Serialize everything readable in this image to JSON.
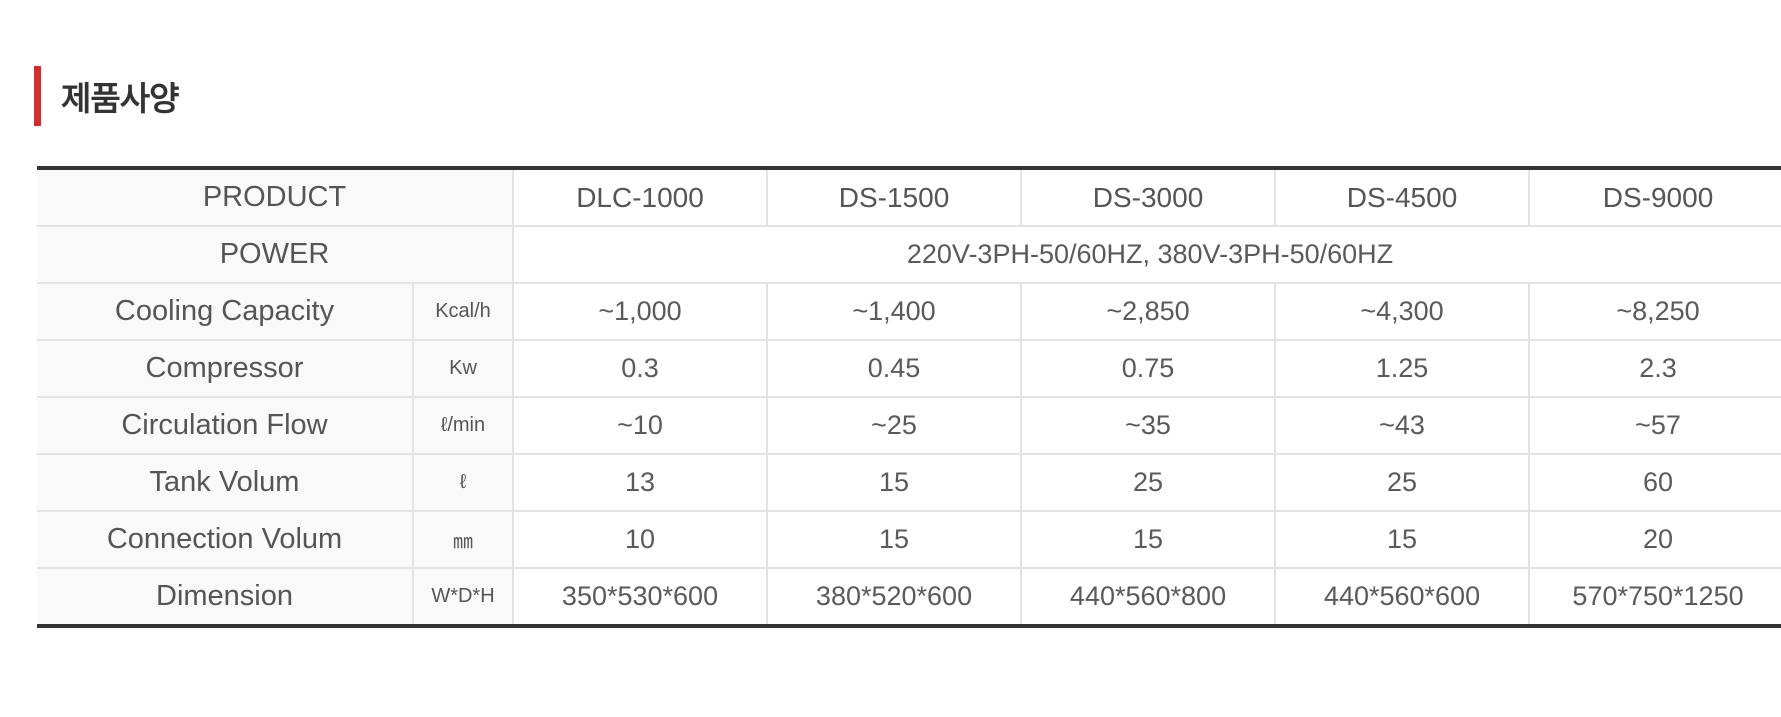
{
  "section_title": "제품사양",
  "table": {
    "product_label": "PRODUCT",
    "models": [
      "DLC-1000",
      "DS-1500",
      "DS-3000",
      "DS-4500",
      "DS-9000"
    ],
    "power_label": "POWER",
    "power_value": "220V-3PH-50/60HZ, 380V-3PH-50/60HZ",
    "rows": [
      {
        "label": "Cooling Capacity",
        "unit": "Kcal/h",
        "values": [
          "~1,000",
          "~1,400",
          "~2,850",
          "~4,300",
          "~8,250"
        ]
      },
      {
        "label": "Compressor",
        "unit": "Kw",
        "values": [
          "0.3",
          "0.45",
          "0.75",
          "1.25",
          "2.3"
        ]
      },
      {
        "label": "Circulation Flow",
        "unit": "ℓ/min",
        "values": [
          "~10",
          "~25",
          "~35",
          "~43",
          "~57"
        ]
      },
      {
        "label": "Tank Volum",
        "unit": "ℓ",
        "values": [
          "13",
          "15",
          "25",
          "25",
          "60"
        ]
      },
      {
        "label": "Connection Volum",
        "unit": "㎜",
        "values": [
          "10",
          "15",
          "15",
          "15",
          "20"
        ]
      },
      {
        "label": "Dimension",
        "unit": "W*D*H",
        "values": [
          "350*530*600",
          "380*520*600",
          "440*560*800",
          "440*560*600",
          "570*750*1250"
        ]
      }
    ]
  },
  "colors": {
    "accent": "#d32f2f",
    "table_border": "#333333",
    "header_bg": "#f9f9f9",
    "grid_line": "#e3e3e3"
  }
}
